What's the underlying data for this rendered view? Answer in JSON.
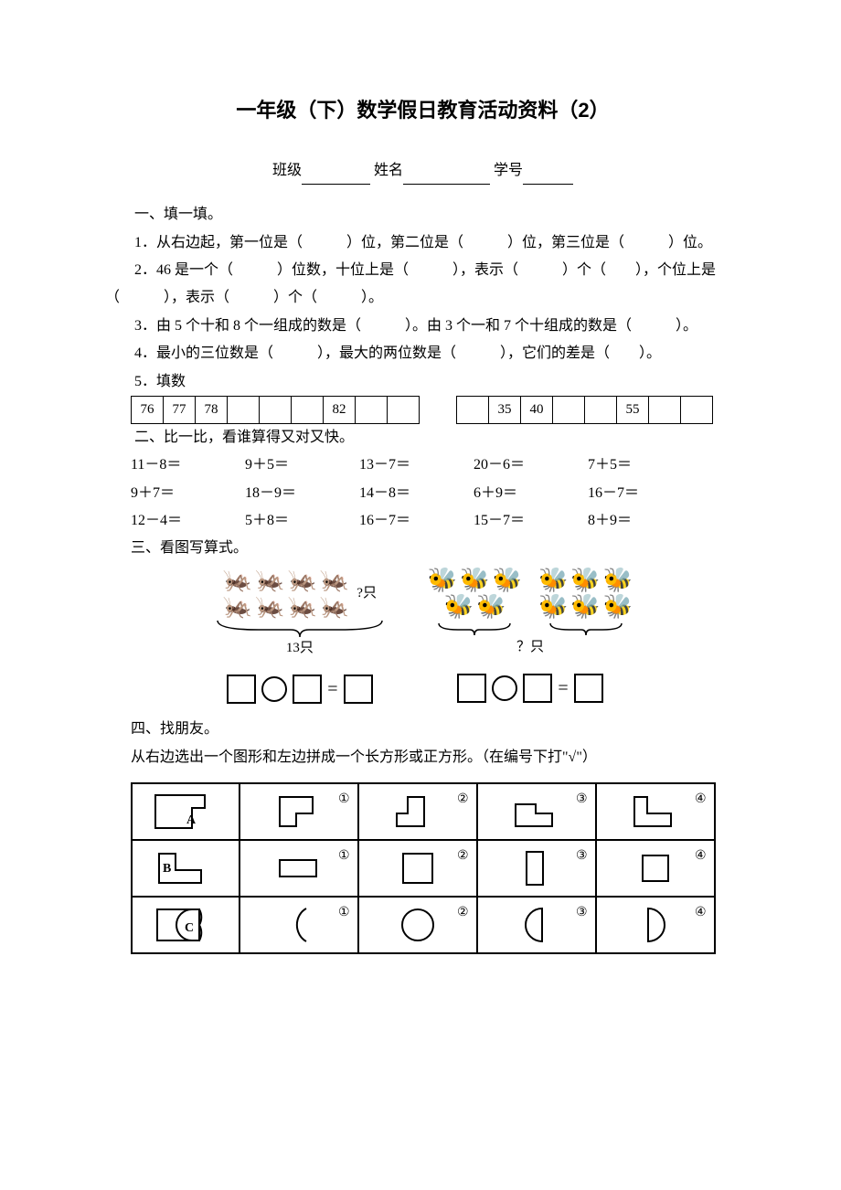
{
  "title": "一年级（下）数学假日教育活动资料（2）",
  "header": {
    "class": "班级",
    "name": "姓名",
    "id": "学号"
  },
  "sec1": {
    "head": "一、填一填。",
    "q1": "1．从右边起，第一位是（　　　）位，第二位是（　　　）位，第三位是（　　　）位。",
    "q2": "2．46 是一个（　　　）位数，十位上是（　　　），表示（　　　）个（　　），个位上是（　　　），表示（　　　）个（　　　）。",
    "q3": "3．由 5 个十和 8 个一组成的数是（　　　）。由 3 个一和 7 个十组成的数是（　　　）。",
    "q4": "4．最小的三位数是（　　　），最大的两位数是（　　　），它们的差是（　　）。",
    "q5head": "5．填数",
    "table_a": [
      "76",
      "77",
      "78",
      "",
      "",
      "",
      "82",
      "",
      ""
    ],
    "table_b": [
      "",
      "35",
      "40",
      "",
      "",
      "55",
      "",
      ""
    ]
  },
  "sec2": {
    "head": "二、比一比，看谁算得又对又快。",
    "rows": [
      [
        "11－8＝",
        "9＋5＝",
        "13－7＝",
        "20－6＝",
        "7＋5＝"
      ],
      [
        "9＋7＝",
        "18－9＝",
        "14－8＝",
        "6＋9＝",
        "16－7＝"
      ],
      [
        "12－4＝",
        "5＋8＝",
        "16－7＝",
        "15－7＝",
        "8＋9＝"
      ]
    ]
  },
  "sec3": {
    "head": "三、看图写算式。",
    "left": {
      "brace_label": "13只",
      "q": "?只"
    },
    "right": {
      "brace_label": "？只"
    }
  },
  "sec4": {
    "head": "四、找朋友。",
    "desc": "从右边选出一个图形和左边拼成一个长方形或正方形。（在编号下打\"√\"）",
    "labels": [
      "A",
      "B",
      "C"
    ],
    "optnums": [
      "①",
      "②",
      "③",
      "④"
    ]
  }
}
